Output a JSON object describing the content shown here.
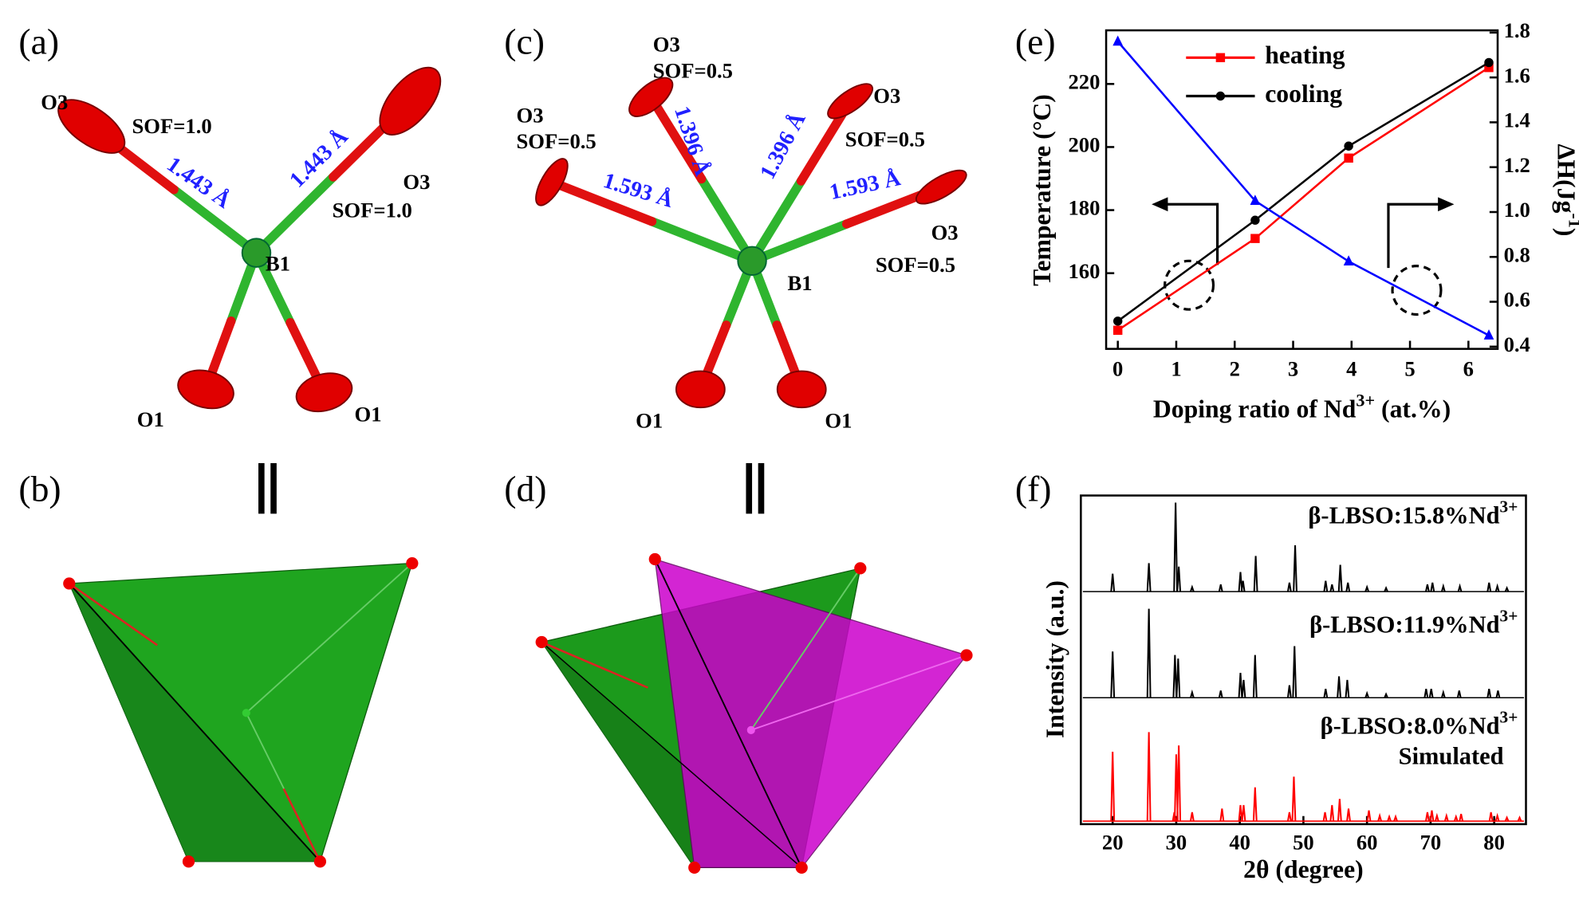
{
  "panel_labels": [
    "(a)",
    "(b)",
    "(c)",
    "(d)",
    "(e)",
    "(f)"
  ],
  "structure_a": {
    "atoms": [
      "O3",
      "O3",
      "B1",
      "O1",
      "O1"
    ],
    "sof": [
      "SOF=1.0",
      "SOF=1.0"
    ],
    "bonds": [
      "1.443 Å",
      "1.443 Å"
    ]
  },
  "structure_c": {
    "atoms": [
      "O3",
      "O3",
      "O3",
      "O3",
      "B1",
      "O1",
      "O1"
    ],
    "sof": [
      "SOF=0.5",
      "SOF=0.5",
      "SOF=0.5",
      "SOF=0.5"
    ],
    "bonds": [
      "1.593 Å",
      "1.396 Å",
      "1.396 Å",
      "1.593 Å"
    ]
  },
  "chart_data": [
    {
      "type": "line",
      "x_label": {
        "text": "Doping ratio of Nd",
        "sup": "3+",
        "tail": " (at.%)"
      },
      "y_label": "Temperature (°C)",
      "y2_label": {
        "text": "ΔH(Jg",
        "sup": "-1",
        "tail": ")"
      },
      "x": [
        0,
        2.35,
        3.95,
        6.35
      ],
      "series": [
        {
          "name": "heating",
          "color": "#ff0000",
          "marker": "square",
          "values": [
            141.9,
            171,
            196.5,
            225.2
          ]
        },
        {
          "name": "cooling",
          "color": "#000000",
          "marker": "circle",
          "values": [
            144.8,
            176.8,
            200.3,
            226.8
          ]
        },
        {
          "color": "#0000ff",
          "marker": "triangle",
          "axis": "y2",
          "values": [
            1.76,
            1.05,
            0.78,
            0.45
          ]
        }
      ],
      "xlim": [
        -0.2,
        6.5
      ],
      "xticks": [
        0,
        1,
        2,
        3,
        4,
        5,
        6
      ],
      "ylim": [
        136,
        237
      ],
      "yticks": [
        160,
        180,
        200,
        220
      ],
      "y2lim": [
        0.39,
        1.81
      ],
      "y2ticks": [
        0.4,
        0.6,
        0.8,
        {
          "value": 1,
          "label": "1.0"
        },
        1.2,
        1.4,
        1.6,
        1.8
      ]
    },
    {
      "type": "spectrum",
      "x_label": "2θ (degree)",
      "y_label": "Intensity (a.u.)",
      "xlim": [
        15,
        85
      ],
      "xticks": [
        20,
        30,
        40,
        50,
        60,
        70,
        80
      ],
      "series": [
        {
          "name": "β-LBSO:15.8%Nd",
          "name_sup": "3+",
          "color": "#000000",
          "x": [
            20.0,
            25.7,
            29.9,
            30.4,
            32.5,
            37,
            40.1,
            40.5,
            42.5,
            47.8,
            48.7,
            53.5,
            54.5,
            55.8,
            57,
            60,
            63,
            69.5,
            70.3,
            72,
            74.6,
            79.2,
            80.5,
            82
          ],
          "values": [
            20,
            32,
            100,
            28,
            5,
            8,
            22,
            12,
            40,
            10,
            52,
            12,
            8,
            30,
            10,
            5,
            4,
            8,
            10,
            6,
            6,
            10,
            6,
            4
          ]
        },
        {
          "name": "β-LBSO:11.9%Nd",
          "name_sup": "3+",
          "color": "#000000",
          "x": [
            20.0,
            25.7,
            29.8,
            30.3,
            32.5,
            37,
            40.1,
            40.6,
            42.4,
            47.8,
            48.6,
            53.5,
            55.6,
            56.9,
            60,
            63,
            69.3,
            70.1,
            72,
            74.5,
            79.2,
            80.6
          ],
          "values": [
            52,
            100,
            48,
            44,
            6,
            8,
            28,
            20,
            48,
            14,
            58,
            10,
            24,
            20,
            5,
            4,
            10,
            10,
            6,
            8,
            10,
            8
          ]
        },
        {
          "name": "β-LBSO:8.0%Nd",
          "name_sup": "3+",
          "caption": "Simulated",
          "color": "#ff0000",
          "x": [
            20.0,
            25.7,
            29.7,
            30.0,
            30.4,
            32.5,
            37.2,
            40.1,
            40.6,
            42.4,
            47.8,
            48.5,
            53.4,
            54.5,
            55.7,
            57.1,
            60.3,
            62,
            63.5,
            64.5,
            69.5,
            70.2,
            71,
            72.5,
            74,
            74.8,
            79.5,
            80.5,
            82,
            84
          ],
          "values": [
            78,
            100,
            10,
            75,
            85,
            10,
            14,
            18,
            18,
            38,
            10,
            50,
            10,
            18,
            25,
            14,
            12,
            6,
            5,
            5,
            10,
            12,
            6,
            6,
            5,
            8,
            10,
            6,
            4,
            4
          ]
        }
      ]
    }
  ]
}
